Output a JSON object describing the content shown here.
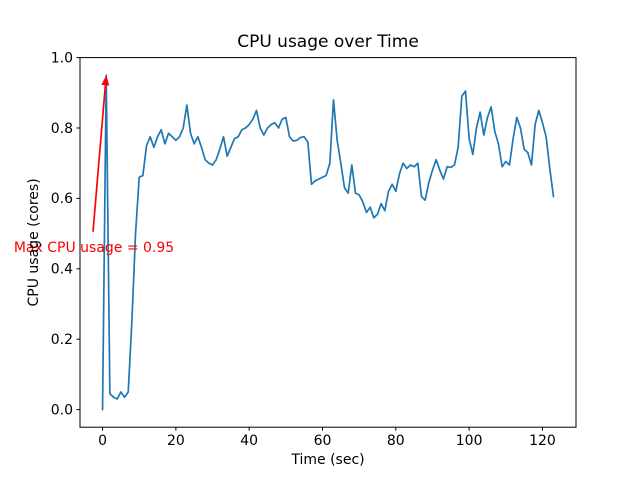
{
  "figure": {
    "background": "#ffffff",
    "spine_color": "#000000"
  },
  "chart_data": {
    "type": "line",
    "title": "CPU usage over Time",
    "xlabel": "Time (sec)",
    "ylabel": "CPU usage (cores)",
    "grid": false,
    "legend": "none",
    "xlim": [
      -6.15,
      129.15
    ],
    "ylim": [
      -0.05,
      1.0
    ],
    "xtick_values": [
      0,
      20,
      40,
      60,
      80,
      100,
      120
    ],
    "xtick_labels": [
      "0",
      "20",
      "40",
      "60",
      "80",
      "100",
      "120"
    ],
    "ytick_values": [
      0.0,
      0.2,
      0.4,
      0.6,
      0.8,
      1.0
    ],
    "ytick_labels": [
      "0.0",
      "0.2",
      "0.4",
      "0.6",
      "0.8",
      "1.0"
    ],
    "x0": 0,
    "dx": 1,
    "series": [
      {
        "name": "cpu-usage",
        "color": "#1f77b4",
        "max_value": 0.95,
        "values": [
          0.0,
          0.95,
          0.045,
          0.035,
          0.03,
          0.05,
          0.035,
          0.05,
          0.25,
          0.5,
          0.66,
          0.665,
          0.75,
          0.775,
          0.745,
          0.775,
          0.795,
          0.755,
          0.785,
          0.775,
          0.765,
          0.775,
          0.8,
          0.865,
          0.785,
          0.755,
          0.775,
          0.745,
          0.71,
          0.7,
          0.695,
          0.71,
          0.74,
          0.775,
          0.72,
          0.745,
          0.77,
          0.775,
          0.795,
          0.8,
          0.81,
          0.825,
          0.85,
          0.8,
          0.78,
          0.8,
          0.81,
          0.815,
          0.8,
          0.825,
          0.83,
          0.775,
          0.763,
          0.765,
          0.773,
          0.775,
          0.76,
          0.64,
          0.65,
          0.655,
          0.66,
          0.665,
          0.7,
          0.88,
          0.765,
          0.7,
          0.63,
          0.615,
          0.695,
          0.615,
          0.61,
          0.59,
          0.56,
          0.575,
          0.545,
          0.555,
          0.585,
          0.565,
          0.62,
          0.64,
          0.62,
          0.67,
          0.7,
          0.685,
          0.695,
          0.69,
          0.7,
          0.605,
          0.595,
          0.645,
          0.68,
          0.71,
          0.68,
          0.655,
          0.69,
          0.688,
          0.695,
          0.745,
          0.89,
          0.905,
          0.77,
          0.725,
          0.8,
          0.845,
          0.78,
          0.83,
          0.86,
          0.79,
          0.755,
          0.69,
          0.705,
          0.695,
          0.77,
          0.83,
          0.8,
          0.74,
          0.73,
          0.695,
          0.81,
          0.85,
          0.815,
          0.775,
          0.685,
          0.605
        ]
      }
    ],
    "annotation": {
      "text": "Max CPU usage = 0.95",
      "color": "#ff0000",
      "point": [
        1,
        0.95
      ],
      "arrow_tail": [
        -2.6,
        0.505
      ],
      "text_pos": [
        -24.2,
        0.462
      ]
    }
  }
}
